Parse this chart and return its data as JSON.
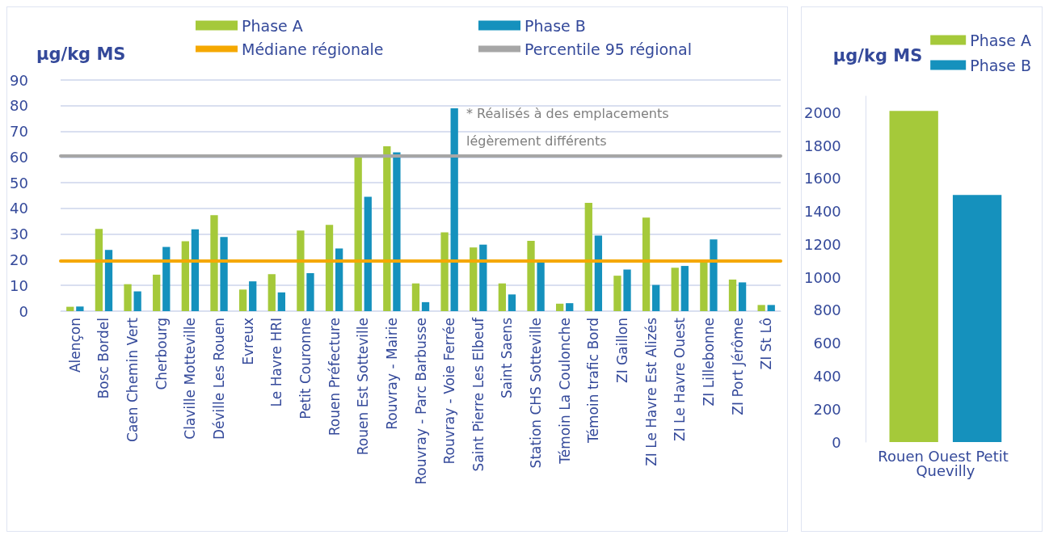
{
  "chart_data": [
    {
      "type": "bar",
      "ylabel": "µg/kg MS",
      "categories": [
        "Alençon",
        "Bosc Bordel",
        "Caen Chemin Vert",
        "Cherbourg",
        "Claville Motteville",
        "Déville Les Rouen",
        "Evreux",
        "Le Havre HRI",
        "Petit Couronne",
        "Rouen Préfecture",
        "Rouen Est Sotteville",
        "Rouvray - Mairie",
        "Rouvray - Parc Barbusse",
        "Rouvray - Voie Ferrée",
        "Saint Pierre Les Elbeuf",
        "Saint Saens",
        "Station CHS Sotteville",
        "Témoin La Coulonche",
        "Témoin trafic Bord",
        "ZI Gaillon",
        "ZI Le Havre Est Alizés",
        "ZI Le Havre Ouest",
        "ZI Lillebonne",
        "ZI Port Jérôme",
        "ZI St Lô"
      ],
      "series": [
        {
          "name": "Phase A",
          "color": "#a5c93a",
          "values": [
            1.7,
            32,
            10.5,
            14.2,
            27.2,
            37.4,
            8.4,
            14.4,
            31.4,
            33.6,
            60,
            64.2,
            10.8,
            30.7,
            24.8,
            10.8,
            27.4,
            2.9,
            42.2,
            13.8,
            36.4,
            16.9,
            19.3,
            12.3,
            2.4
          ]
        },
        {
          "name": "Phase B",
          "color": "#1591bd",
          "values": [
            1.8,
            23.8,
            7.7,
            25,
            31.9,
            28.9,
            11.6,
            7.3,
            14.8,
            24.4,
            44.5,
            61.8,
            3.5,
            79,
            25.9,
            6.5,
            19,
            3.1,
            29.4,
            16.2,
            10.2,
            17.6,
            27.9,
            11.2,
            2.4
          ]
        }
      ],
      "ref_lines": [
        {
          "axis": "y",
          "value": 19.5,
          "label": "Médiane régionale",
          "color": "#f5a800"
        },
        {
          "axis": "y",
          "value": 60.6,
          "label": "Percentile 95 régional",
          "color": "#a6a6a6"
        }
      ],
      "annotations": [
        "* Réalisés à des emplacements légèrement différents"
      ],
      "ylim": [
        0,
        90
      ],
      "yticks": [
        0,
        10,
        20,
        30,
        40,
        50,
        60,
        70,
        80,
        90
      ],
      "grid": true,
      "legend": "top"
    },
    {
      "type": "bar",
      "ylabel": "µg/kg MS",
      "categories": [
        "Rouen Ouest Petit Quevilly"
      ],
      "series": [
        {
          "name": "Phase A",
          "color": "#a5c93a",
          "values": [
            2010
          ]
        },
        {
          "name": "Phase B",
          "color": "#1591bd",
          "values": [
            1500
          ]
        }
      ],
      "ylim": [
        0,
        2100
      ],
      "yticks": [
        0,
        200,
        400,
        600,
        800,
        1000,
        1200,
        1400,
        1600,
        1800,
        2000
      ],
      "legend": "top right"
    }
  ]
}
